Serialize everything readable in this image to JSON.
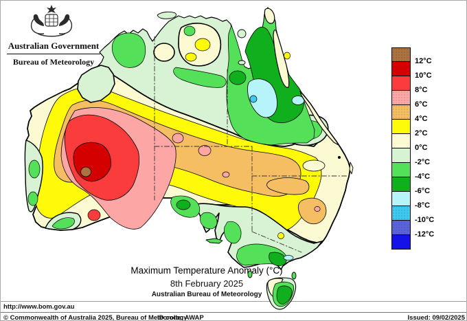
{
  "header": {
    "government": "Australian Government",
    "bureau": "Bureau of Meteorology"
  },
  "title_block": {
    "title": "Maximum Temperature Anomaly (°C)",
    "date": "8th February 2025",
    "org": "Australian Bureau of Meteorology"
  },
  "legend": {
    "labels": [
      "12°C",
      "10°C",
      "8°C",
      "6°C",
      "4°C",
      "2°C",
      "0°C",
      "-2°C",
      "-4°C",
      "-6°C",
      "-8°C",
      "-10°C",
      "-12°C"
    ],
    "colors": [
      "#AC7240",
      "#D40000",
      "#FA3C3C",
      "#FCA6A6",
      "#F5BE62",
      "#FFFB08",
      "#FBFAD2",
      "#D8F3D3",
      "#55E05A",
      "#0FAF1E",
      "#B5F4F9",
      "#3FC8F0",
      "#5A64DA",
      "#1412E6"
    ],
    "stippled": [
      0,
      3,
      4,
      11,
      12
    ]
  },
  "footer": {
    "url": "http://www.bom.gov.au",
    "copyright": "© Commonwealth of Australia 2025, Bureau of Meteorology",
    "id_code": "ID code: AWAP",
    "issued": "Issued: 09/02/2025"
  }
}
